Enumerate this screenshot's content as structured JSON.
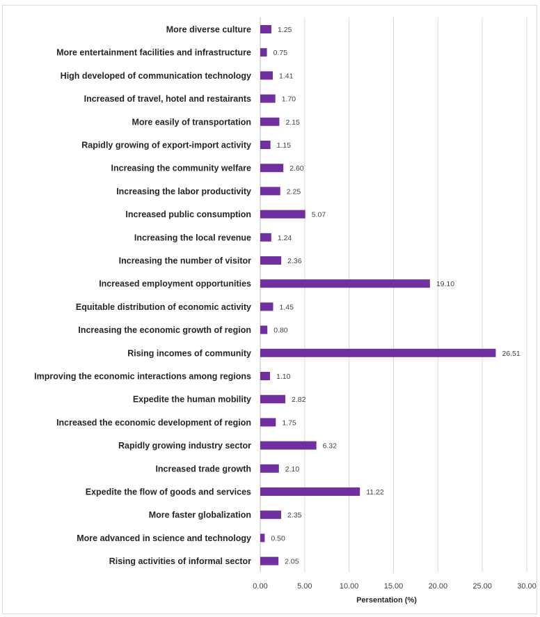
{
  "chart_data": {
    "type": "bar",
    "orientation": "horizontal",
    "title": "",
    "xlabel": "Persentation (%)",
    "ylabel": "",
    "xlim": [
      0,
      30
    ],
    "x_ticks": [
      "0.00",
      "5.00",
      "10.00",
      "15.00",
      "20.00",
      "25.00",
      "30.00"
    ],
    "grid": true,
    "bar_color": "#7030a0",
    "categories": [
      "More diverse culture",
      "More entertainment facilities and infrastructure",
      "High developed of communication technology",
      "Increased of travel, hotel and restairants",
      "More easily of transportation",
      "Rapidly growing of export-import activity",
      "Increasing the community welfare",
      "Increasing the labor productivity",
      "Increased public consumption",
      "Increasing the local revenue",
      "Increasing the number of visitor",
      "Increased employment opportunities",
      "Equitable distribution of economic activity",
      "Increasing the economic growth of region",
      "Rising incomes of community",
      "Improving the economic interactions among regions",
      "Expedite the human mobility",
      "Increased the economic development of region",
      "Rapidly growing industry sector",
      "Increased trade growth",
      "Expedite the flow of goods and services",
      "More faster globalization",
      "More advanced in science and technology",
      "Rising activities of informal sector"
    ],
    "values": [
      1.25,
      0.75,
      1.41,
      1.7,
      2.15,
      1.15,
      2.6,
      2.25,
      5.07,
      1.24,
      2.36,
      19.1,
      1.45,
      0.8,
      26.51,
      1.1,
      2.82,
      1.75,
      6.32,
      2.1,
      11.22,
      2.35,
      0.5,
      2.05
    ],
    "value_labels": [
      "1.25",
      "0.75",
      "1.41",
      "1.70",
      "2.15",
      "1.15",
      "2.60",
      "2.25",
      "5.07",
      "1.24",
      "2.36",
      "19.10",
      "1.45",
      "0.80",
      "26.51",
      "1.10",
      "2.82",
      "1.75",
      "6.32",
      "2.10",
      "11.22",
      "2.35",
      "0.50",
      "2.05"
    ]
  }
}
